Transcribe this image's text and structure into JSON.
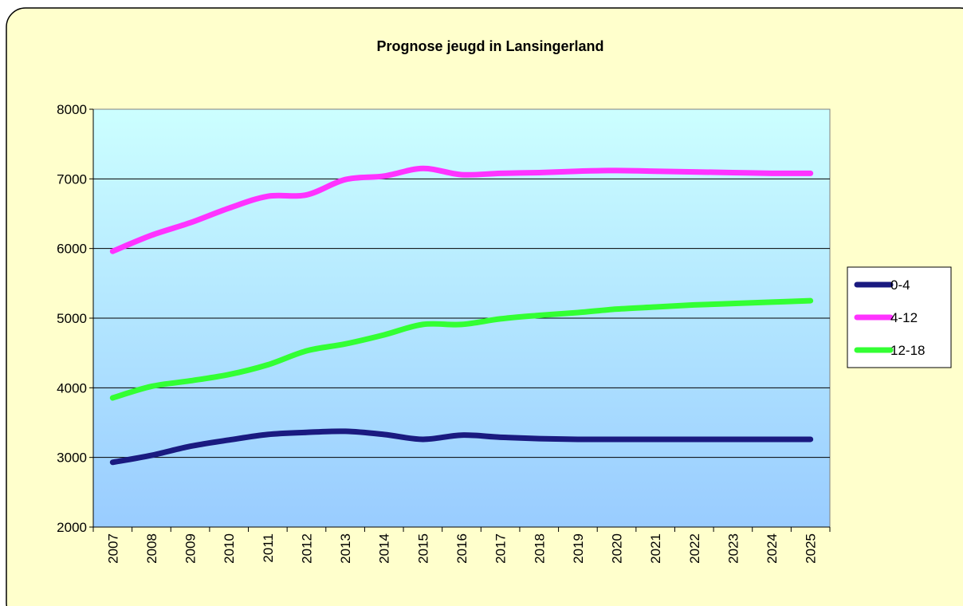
{
  "chart_data": {
    "type": "line",
    "title": "Prognose jeugd in Lansingerland",
    "categories": [
      "2007",
      "2008",
      "2009",
      "2010",
      "2011",
      "2012",
      "2013",
      "2014",
      "2015",
      "2016",
      "2017",
      "2018",
      "2019",
      "2020",
      "2021",
      "2022",
      "2023",
      "2024",
      "2025"
    ],
    "series": [
      {
        "name": "0-4",
        "color": "#1a1a80",
        "values": [
          2930,
          3030,
          3160,
          3250,
          3330,
          3360,
          3375,
          3330,
          3260,
          3320,
          3290,
          3270,
          3260,
          3260,
          3260,
          3260,
          3260,
          3260,
          3260
        ]
      },
      {
        "name": "4-12",
        "color": "#ff33ff",
        "values": [
          5960,
          6190,
          6370,
          6580,
          6750,
          6770,
          6990,
          7040,
          7150,
          7060,
          7080,
          7090,
          7110,
          7120,
          7110,
          7100,
          7090,
          7080,
          7080
        ]
      },
      {
        "name": "12-18",
        "color": "#33ff33",
        "values": [
          3855,
          4020,
          4100,
          4190,
          4330,
          4530,
          4630,
          4760,
          4910,
          4910,
          4990,
          5040,
          5080,
          5130,
          5160,
          5190,
          5210,
          5230,
          5250
        ]
      }
    ],
    "ylim": [
      2000,
      8000
    ],
    "yticks": [
      2000,
      3000,
      4000,
      5000,
      6000,
      7000,
      8000
    ],
    "grid": true,
    "legend": "right"
  }
}
